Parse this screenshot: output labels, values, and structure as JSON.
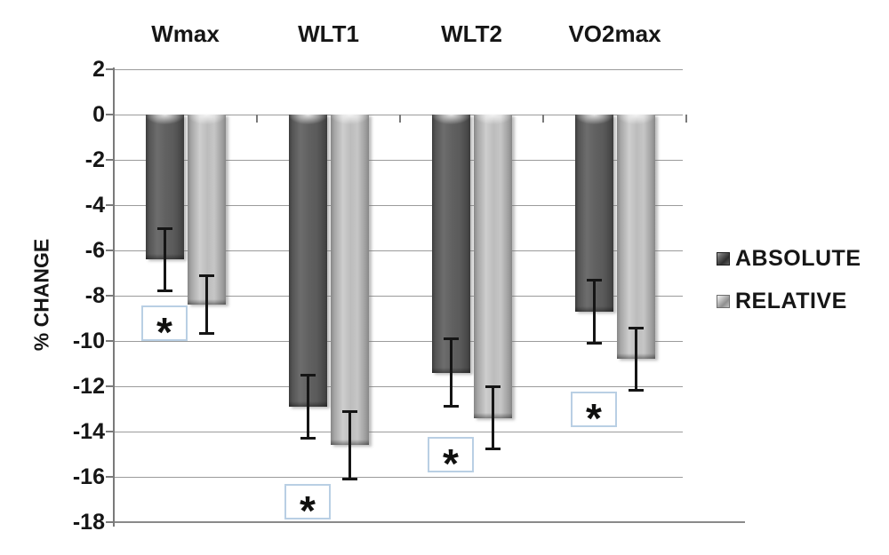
{
  "chart_data": {
    "type": "bar",
    "title": "",
    "categories": [
      "Wmax",
      "WLT1",
      "WLT2",
      "VO2max"
    ],
    "series": [
      {
        "name": "ABSOLUTE",
        "color": "#5e5e5e",
        "values": [
          -6.4,
          -12.9,
          -11.4,
          -8.7
        ],
        "errors": [
          1.4,
          1.4,
          1.5,
          1.4
        ]
      },
      {
        "name": "RELATIVE",
        "color": "#b5b5b5",
        "values": [
          -8.4,
          -14.6,
          -13.4,
          -10.8
        ],
        "errors": [
          1.3,
          1.5,
          1.4,
          1.4
        ]
      }
    ],
    "significance_markers": [
      {
        "category": "Wmax",
        "label": "*",
        "y": -9.2
      },
      {
        "category": "WLT1",
        "label": "*",
        "y": -17.1
      },
      {
        "category": "WLT2",
        "label": "*",
        "y": -15.0
      },
      {
        "category": "VO2max",
        "label": "*",
        "y": -13.0
      }
    ],
    "xlabel": "",
    "ylabel": "% CHANGE",
    "ylim": [
      -18,
      2
    ],
    "ytick_step": 2,
    "grid": true,
    "legend_position": "right",
    "legend": [
      "ABSOLUTE",
      "RELATIVE"
    ]
  },
  "colors": {
    "absolute_bar": "#5e5e5e",
    "relative_bar": "#b5b5b5",
    "gridline": "#9b9b9b",
    "axis": "#7a7a7a",
    "text": "#161616",
    "error_bar": "#151515",
    "significance_box_border": "#b9cfe4",
    "background": "#ffffff"
  }
}
